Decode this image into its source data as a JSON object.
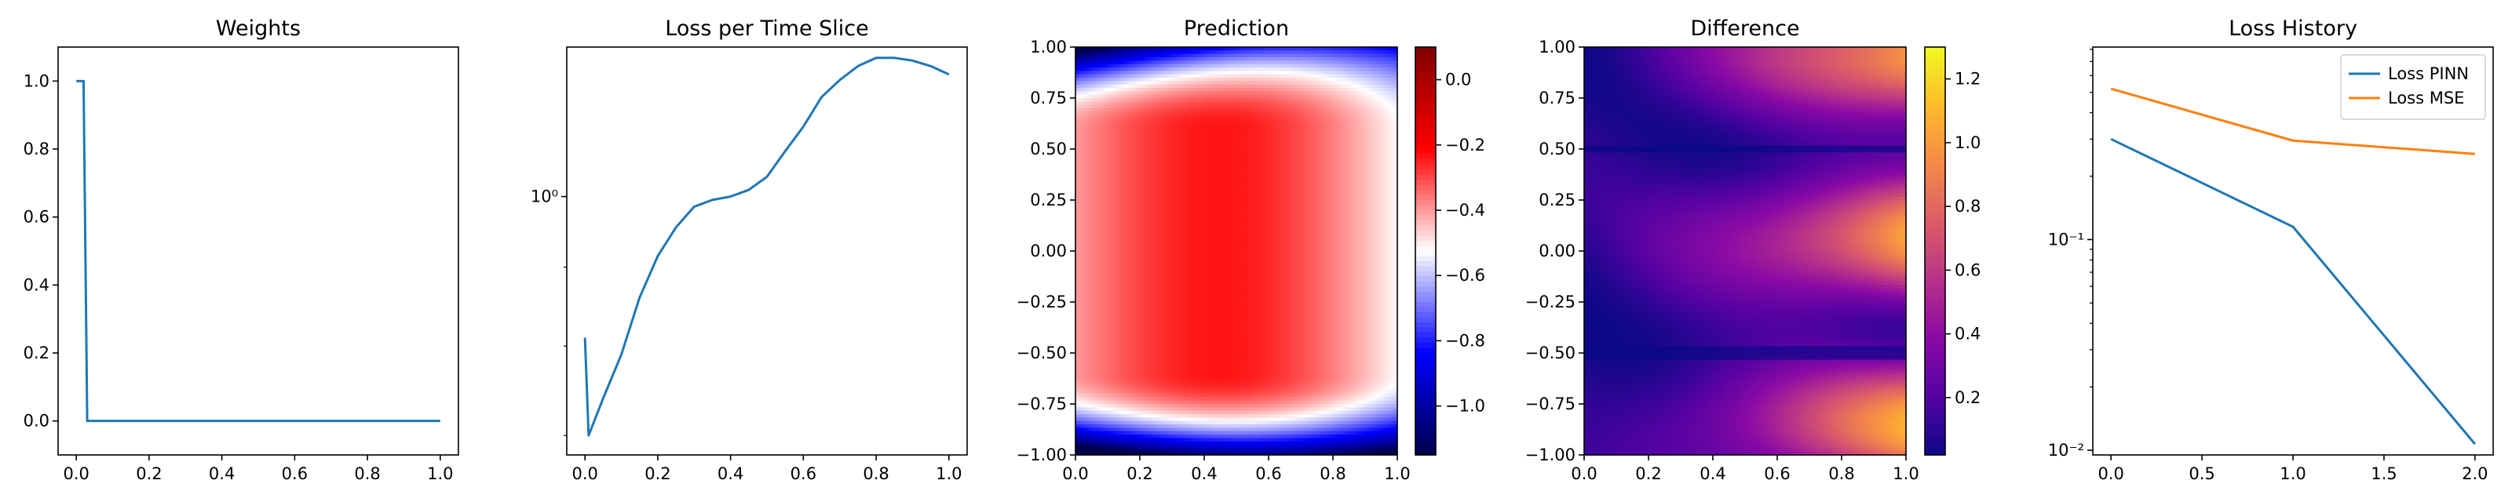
{
  "chart_data": [
    {
      "type": "line",
      "title": "Weights",
      "xlabel": "",
      "ylabel": "",
      "xlim": [
        -0.05,
        1.05
      ],
      "ylim": [
        -0.1,
        1.1
      ],
      "xticks": [
        0.0,
        0.2,
        0.4,
        0.6,
        0.8,
        1.0
      ],
      "xtick_labels": [
        "0.0",
        "0.2",
        "0.4",
        "0.6",
        "0.8",
        "1.0"
      ],
      "yticks": [
        0.0,
        0.2,
        0.4,
        0.6,
        0.8,
        1.0
      ],
      "ytick_labels": [
        "0.0",
        "0.2",
        "0.4",
        "0.6",
        "0.8",
        "1.0"
      ],
      "grid": false,
      "series": [
        {
          "color": "#1f77b4",
          "x": [
            0.0,
            0.01,
            0.02,
            0.03,
            1.0
          ],
          "y": [
            1.0,
            1.0,
            1.0,
            0.0,
            0.0
          ]
        }
      ]
    },
    {
      "type": "line",
      "title": "Loss per Time Slice",
      "xlabel": "",
      "ylabel": "",
      "yscale": "log",
      "xlim": [
        -0.05,
        1.05
      ],
      "ylim": [
        0.68,
        1.25
      ],
      "xticks": [
        0.0,
        0.2,
        0.4,
        0.6,
        0.8,
        1.0
      ],
      "xtick_labels": [
        "0.0",
        "0.2",
        "0.4",
        "0.6",
        "0.8",
        "1.0"
      ],
      "yticks": [
        1.0
      ],
      "ytick_labels": [
        "10⁰"
      ],
      "yminor_ticks": [
        0.7,
        0.8,
        0.9
      ],
      "grid": false,
      "series": [
        {
          "color": "#1f77b4",
          "x": [
            0.0,
            0.01,
            0.05,
            0.1,
            0.15,
            0.2,
            0.25,
            0.3,
            0.35,
            0.4,
            0.45,
            0.5,
            0.55,
            0.6,
            0.65,
            0.7,
            0.75,
            0.8,
            0.85,
            0.9,
            0.95,
            1.0
          ],
          "y": [
            0.81,
            0.7,
            0.74,
            0.79,
            0.86,
            0.915,
            0.955,
            0.985,
            0.995,
            1.0,
            1.01,
            1.03,
            1.07,
            1.11,
            1.16,
            1.19,
            1.215,
            1.23,
            1.23,
            1.225,
            1.215,
            1.2
          ]
        }
      ]
    },
    {
      "type": "heatmap",
      "title": "Prediction",
      "xlabel": "",
      "ylabel": "",
      "xlim": [
        0.0,
        1.0
      ],
      "ylim": [
        -1.0,
        1.0
      ],
      "xticks": [
        0.0,
        0.2,
        0.4,
        0.6,
        0.8,
        1.0
      ],
      "xtick_labels": [
        "0.0",
        "0.2",
        "0.4",
        "0.6",
        "0.8",
        "1.0"
      ],
      "yticks": [
        -1.0,
        -0.75,
        -0.5,
        -0.25,
        0.0,
        0.25,
        0.5,
        0.75,
        1.0
      ],
      "ytick_labels": [
        "−1.00",
        "−0.75",
        "−0.50",
        "−0.25",
        "0.00",
        "0.25",
        "0.50",
        "0.75",
        "1.00"
      ],
      "colormap": "seismic",
      "colorbar_range": [
        -1.15,
        0.1
      ],
      "colorbar_ticks": [
        -1.0,
        -0.8,
        -0.6,
        -0.4,
        -0.2,
        0.0
      ],
      "colorbar_tick_labels": [
        "−1.0",
        "−0.8",
        "−0.6",
        "−0.4",
        "−0.2",
        "0.0"
      ]
    },
    {
      "type": "heatmap",
      "title": "Difference",
      "xlabel": "",
      "ylabel": "",
      "xlim": [
        0.0,
        1.0
      ],
      "ylim": [
        -1.0,
        1.0
      ],
      "xticks": [
        0.0,
        0.2,
        0.4,
        0.6,
        0.8,
        1.0
      ],
      "xtick_labels": [
        "0.0",
        "0.2",
        "0.4",
        "0.6",
        "0.8",
        "1.0"
      ],
      "yticks": [
        -1.0,
        -0.75,
        -0.5,
        -0.25,
        0.0,
        0.25,
        0.5,
        0.75,
        1.0
      ],
      "ytick_labels": [
        "−1.00",
        "−0.75",
        "−0.50",
        "−0.25",
        "0.00",
        "0.25",
        "0.50",
        "0.75",
        "1.00"
      ],
      "colormap": "plasma",
      "colorbar_range": [
        0.02,
        1.3
      ],
      "colorbar_ticks": [
        0.2,
        0.4,
        0.6,
        0.8,
        1.0,
        1.2
      ],
      "colorbar_tick_labels": [
        "0.2",
        "0.4",
        "0.6",
        "0.8",
        "1.0",
        "1.2"
      ]
    },
    {
      "type": "line",
      "title": "Loss History",
      "xlabel": "",
      "ylabel": "",
      "yscale": "log",
      "xlim": [
        -0.1,
        2.1
      ],
      "ylim": [
        0.0095,
        0.82
      ],
      "xticks": [
        0.0,
        0.5,
        1.0,
        1.5,
        2.0
      ],
      "xtick_labels": [
        "0.0",
        "0.5",
        "1.0",
        "1.5",
        "2.0"
      ],
      "yticks": [
        0.01,
        0.1
      ],
      "ytick_labels": [
        "10⁻²",
        "10⁻¹"
      ],
      "grid": false,
      "legend": "top-right",
      "series": [
        {
          "name": "Loss PINN",
          "color": "#1f77b4",
          "x": [
            0,
            1,
            2
          ],
          "y": [
            0.3,
            0.115,
            0.0107
          ]
        },
        {
          "name": "Loss MSE",
          "color": "#ff7f0e",
          "x": [
            0,
            1,
            2
          ],
          "y": [
            0.52,
            0.295,
            0.255
          ]
        }
      ]
    }
  ]
}
